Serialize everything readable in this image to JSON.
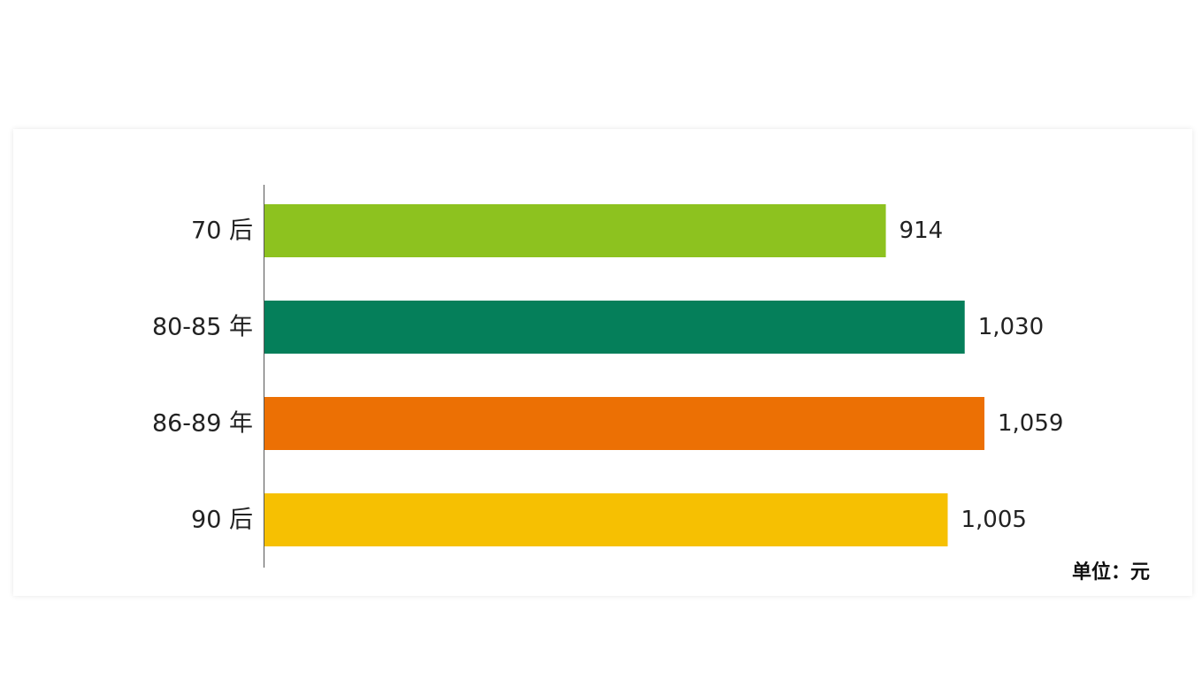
{
  "chart_data": {
    "type": "bar",
    "orientation": "horizontal",
    "categories": [
      "70 后",
      "80-85 年",
      "86-89 年",
      "90 后"
    ],
    "values": [
      914,
      1030,
      1059,
      1005
    ],
    "value_labels": [
      "914",
      "1,030",
      "1,059",
      "1,005"
    ],
    "colors": [
      "#8dc21f",
      "#057f5a",
      "#ec7004",
      "#f6c002"
    ],
    "unit_label": "单位：元",
    "xlim": [
      0,
      1059
    ],
    "grid": false,
    "legend": "none"
  }
}
